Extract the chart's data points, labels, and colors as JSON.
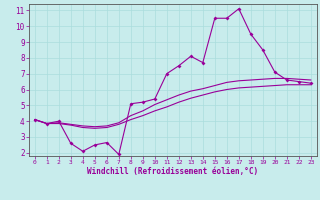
{
  "bg_color": "#c8ecec",
  "line_color": "#990099",
  "grid_color": "#aadddd",
  "spine_color": "#666666",
  "xlim": [
    -0.5,
    23.5
  ],
  "ylim": [
    1.8,
    11.4
  ],
  "xticks": [
    0,
    1,
    2,
    3,
    4,
    5,
    6,
    7,
    8,
    9,
    10,
    11,
    12,
    13,
    14,
    15,
    16,
    17,
    18,
    19,
    20,
    21,
    22,
    23
  ],
  "yticks": [
    2,
    3,
    4,
    5,
    6,
    7,
    8,
    9,
    10,
    11
  ],
  "xlabel": "Windchill (Refroidissement éolien,°C)",
  "line1_x": [
    0,
    1,
    2,
    3,
    4,
    5,
    6,
    7,
    8,
    9,
    10,
    11,
    12,
    13,
    14,
    15,
    16,
    17,
    18,
    19,
    20,
    21,
    22,
    23
  ],
  "line1_y": [
    4.1,
    3.85,
    4.0,
    2.6,
    2.1,
    2.5,
    2.65,
    1.9,
    5.1,
    5.2,
    5.4,
    7.0,
    7.5,
    8.1,
    7.7,
    10.5,
    10.5,
    11.1,
    9.5,
    8.5,
    7.1,
    6.6,
    6.5,
    6.4
  ],
  "line2_x": [
    0,
    1,
    2,
    3,
    4,
    5,
    6,
    7,
    8,
    9,
    10,
    11,
    12,
    13,
    14,
    15,
    16,
    17,
    18,
    19,
    20,
    21,
    22,
    23
  ],
  "line2_y": [
    4.1,
    3.85,
    3.9,
    3.8,
    3.7,
    3.65,
    3.7,
    3.9,
    4.35,
    4.65,
    5.05,
    5.35,
    5.65,
    5.9,
    6.05,
    6.25,
    6.45,
    6.55,
    6.6,
    6.65,
    6.7,
    6.7,
    6.65,
    6.6
  ],
  "line3_x": [
    0,
    1,
    2,
    3,
    4,
    5,
    6,
    7,
    8,
    9,
    10,
    11,
    12,
    13,
    14,
    15,
    16,
    17,
    18,
    19,
    20,
    21,
    22,
    23
  ],
  "line3_y": [
    4.1,
    3.85,
    3.85,
    3.75,
    3.6,
    3.55,
    3.6,
    3.8,
    4.1,
    4.35,
    4.65,
    4.9,
    5.2,
    5.45,
    5.65,
    5.85,
    6.0,
    6.1,
    6.15,
    6.2,
    6.25,
    6.3,
    6.3,
    6.3
  ]
}
